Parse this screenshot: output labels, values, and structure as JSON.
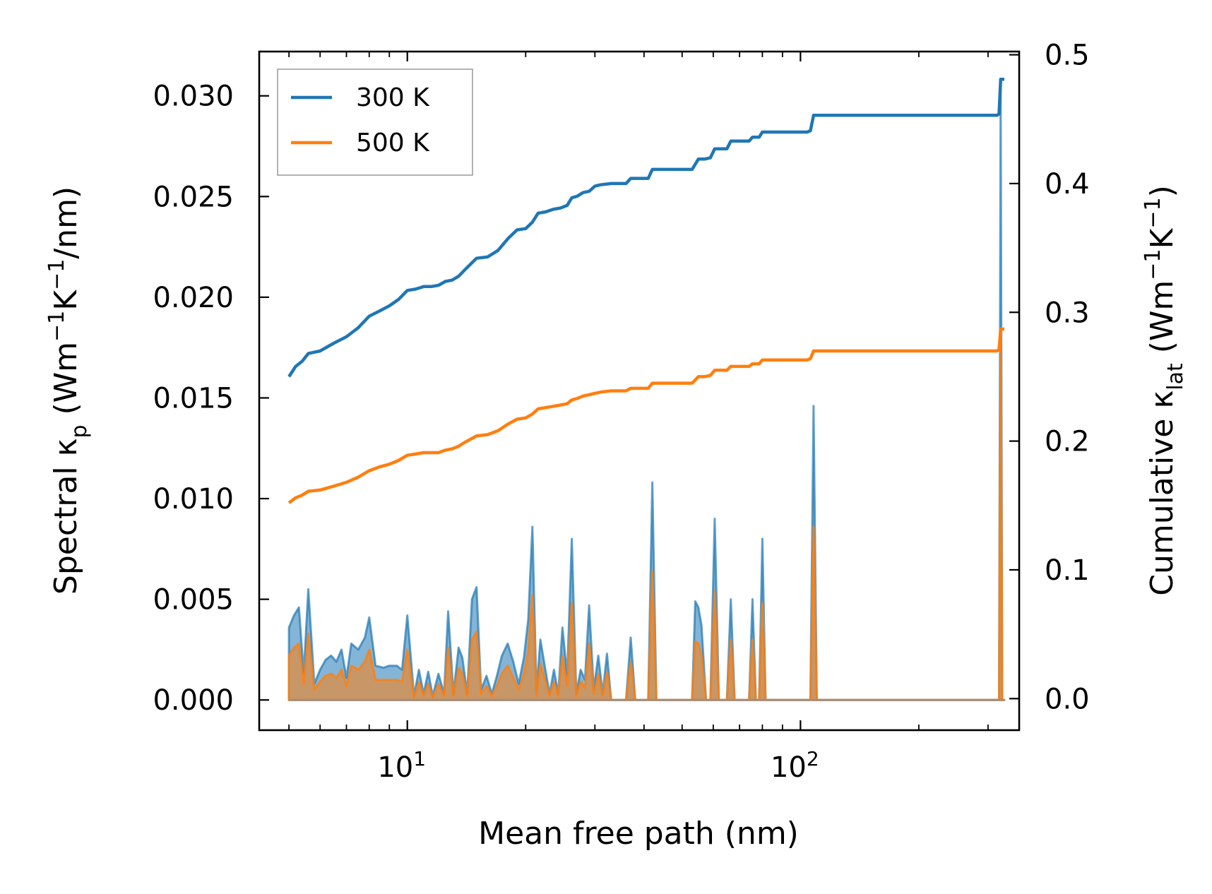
{
  "chart_data": {
    "type": "line",
    "xlabel": "Mean free path (nm)",
    "xscale": "log",
    "xlim": [
      4.2,
      360
    ],
    "x_tick_labels": [
      {
        "base": "10",
        "exp": "1"
      },
      {
        "base": "10",
        "exp": "2"
      }
    ],
    "ylabel_left": {
      "main": "Spectral κ",
      "sub": "p",
      "unit_open": " (Wm",
      "sup1": "−1",
      "mid": "K",
      "sup2": "−1",
      "unit_close": "/nm)"
    },
    "ylabel_right": {
      "main": "Cumulative κ",
      "sub": "lat",
      "unit_open": " (Wm",
      "sup1": "−1",
      "mid": "K",
      "sup2": "−1",
      "unit_close": ")"
    },
    "ylim_left": [
      -0.0015,
      0.0322
    ],
    "ylim_right": [
      -0.0245,
      0.5025
    ],
    "left_ticks": [
      "0.000",
      "0.005",
      "0.010",
      "0.015",
      "0.020",
      "0.025",
      "0.030"
    ],
    "right_ticks": [
      "0.0",
      "0.1",
      "0.2",
      "0.3",
      "0.4",
      "0.5"
    ],
    "legend": {
      "position": "upper left",
      "entries": [
        "300 K",
        "500 K"
      ]
    },
    "colors": {
      "s300": "#1f77b4",
      "s500": "#ff7f0e",
      "fill300": "#6a9fcb",
      "fill500": "#c8976e"
    },
    "spectral_300": [
      [
        5.0,
        0.0036
      ],
      [
        5.15,
        0.0042
      ],
      [
        5.3,
        0.0046
      ],
      [
        5.45,
        0.0013
      ],
      [
        5.6,
        0.0055
      ],
      [
        5.8,
        0.0008
      ],
      [
        6.0,
        0.0015
      ],
      [
        6.2,
        0.002
      ],
      [
        6.4,
        0.0022
      ],
      [
        6.6,
        0.0019
      ],
      [
        6.8,
        0.0025
      ],
      [
        7.0,
        0.0011
      ],
      [
        7.2,
        0.0028
      ],
      [
        7.5,
        0.0025
      ],
      [
        7.8,
        0.0031
      ],
      [
        8.0,
        0.0041
      ],
      [
        8.3,
        0.0017
      ],
      [
        8.7,
        0.0016
      ],
      [
        9.0,
        0.0017
      ],
      [
        9.4,
        0.0017
      ],
      [
        9.7,
        0.0015
      ],
      [
        10.0,
        0.0042
      ],
      [
        10.4,
        0.0002
      ],
      [
        10.7,
        0.0015
      ],
      [
        11.0,
        0.0003
      ],
      [
        11.3,
        0.0014
      ],
      [
        11.6,
        0.0002
      ],
      [
        12.0,
        0.0013
      ],
      [
        12.4,
        0.0003
      ],
      [
        12.7,
        0.0044
      ],
      [
        13.1,
        0.0003
      ],
      [
        13.5,
        0.0026
      ],
      [
        13.8,
        0.0021
      ],
      [
        14.2,
        0.0003
      ],
      [
        14.6,
        0.005
      ],
      [
        15.0,
        0.0056
      ],
      [
        15.4,
        0.0005
      ],
      [
        15.9,
        0.0012
      ],
      [
        16.4,
        0.0003
      ],
      [
        16.9,
        0.0012
      ],
      [
        17.4,
        0.0022
      ],
      [
        18.0,
        0.0028
      ],
      [
        18.6,
        0.0019
      ],
      [
        19.2,
        0.0008
      ],
      [
        19.8,
        0.0021
      ],
      [
        20.3,
        0.004
      ],
      [
        20.8,
        0.0086
      ],
      [
        21.3,
        0.0004
      ],
      [
        21.8,
        0.003
      ],
      [
        22.4,
        0.0016
      ],
      [
        23.0,
        0.0003
      ],
      [
        23.6,
        0.0015
      ],
      [
        24.2,
        0.0003
      ],
      [
        24.8,
        0.0036
      ],
      [
        25.5,
        0.0012
      ],
      [
        26.2,
        0.008
      ],
      [
        26.9,
        0.0003
      ],
      [
        27.6,
        0.0015
      ],
      [
        28.3,
        0.001
      ],
      [
        29.0,
        0.0047
      ],
      [
        29.8,
        0.0005
      ],
      [
        30.6,
        0.0022
      ],
      [
        31.4,
        0.0003
      ],
      [
        32.2,
        0.0023
      ],
      [
        33.0,
        0.0
      ],
      [
        36.0,
        0.0
      ],
      [
        37.0,
        0.0031
      ],
      [
        38.0,
        0.0
      ],
      [
        41.0,
        0.0
      ],
      [
        42.0,
        0.0108
      ],
      [
        43.0,
        0.0
      ],
      [
        53.0,
        0.0
      ],
      [
        54.0,
        0.0049
      ],
      [
        55.0,
        0.0046
      ],
      [
        56.0,
        0.0037
      ],
      [
        57.5,
        0.0
      ],
      [
        59.0,
        0.0
      ],
      [
        60.5,
        0.009
      ],
      [
        62.0,
        0.0
      ],
      [
        65.0,
        0.0
      ],
      [
        66.5,
        0.005
      ],
      [
        68.0,
        0.0
      ],
      [
        74.0,
        0.0
      ],
      [
        75.5,
        0.005
      ],
      [
        77.0,
        0.0
      ],
      [
        78.5,
        0.0
      ],
      [
        80.0,
        0.008
      ],
      [
        81.5,
        0.0
      ],
      [
        104.0,
        0.0
      ],
      [
        106.0,
        0.0
      ],
      [
        108.0,
        0.0146
      ],
      [
        110.0,
        0.0
      ],
      [
        316.0,
        0.0
      ],
      [
        320.0,
        0.0
      ],
      [
        323.0,
        0.0306
      ],
      [
        326.0,
        0.0
      ],
      [
        330.0,
        0.0
      ]
    ],
    "spectral_500": [
      [
        5.0,
        0.0022
      ],
      [
        5.15,
        0.0026
      ],
      [
        5.3,
        0.0028
      ],
      [
        5.45,
        0.0008
      ],
      [
        5.6,
        0.0033
      ],
      [
        5.8,
        0.0005
      ],
      [
        6.0,
        0.0009
      ],
      [
        6.2,
        0.0012
      ],
      [
        6.4,
        0.0013
      ],
      [
        6.6,
        0.0011
      ],
      [
        6.8,
        0.0015
      ],
      [
        7.0,
        0.0007
      ],
      [
        7.2,
        0.0017
      ],
      [
        7.5,
        0.0015
      ],
      [
        7.8,
        0.0019
      ],
      [
        8.0,
        0.0025
      ],
      [
        8.3,
        0.001
      ],
      [
        8.7,
        0.001
      ],
      [
        9.0,
        0.001
      ],
      [
        9.4,
        0.001
      ],
      [
        9.7,
        0.0009
      ],
      [
        10.0,
        0.0025
      ],
      [
        10.4,
        0.0001
      ],
      [
        10.7,
        0.0009
      ],
      [
        11.0,
        0.0002
      ],
      [
        11.3,
        0.0008
      ],
      [
        11.6,
        0.0001
      ],
      [
        12.0,
        0.0008
      ],
      [
        12.4,
        0.0002
      ],
      [
        12.7,
        0.0026
      ],
      [
        13.1,
        0.0002
      ],
      [
        13.5,
        0.0016
      ],
      [
        13.8,
        0.0013
      ],
      [
        14.2,
        0.0002
      ],
      [
        14.6,
        0.003
      ],
      [
        15.0,
        0.0034
      ],
      [
        15.4,
        0.0003
      ],
      [
        15.9,
        0.0007
      ],
      [
        16.4,
        0.0002
      ],
      [
        16.9,
        0.0007
      ],
      [
        17.4,
        0.0013
      ],
      [
        18.0,
        0.0017
      ],
      [
        18.6,
        0.0011
      ],
      [
        19.2,
        0.0005
      ],
      [
        19.8,
        0.0013
      ],
      [
        20.3,
        0.0024
      ],
      [
        20.8,
        0.0052
      ],
      [
        21.3,
        0.0002
      ],
      [
        21.8,
        0.0018
      ],
      [
        22.4,
        0.001
      ],
      [
        23.0,
        0.0002
      ],
      [
        23.6,
        0.0009
      ],
      [
        24.2,
        0.0002
      ],
      [
        24.8,
        0.0022
      ],
      [
        25.5,
        0.0007
      ],
      [
        26.2,
        0.0048
      ],
      [
        26.9,
        0.0002
      ],
      [
        27.6,
        0.0009
      ],
      [
        28.3,
        0.0006
      ],
      [
        29.0,
        0.0028
      ],
      [
        29.8,
        0.0003
      ],
      [
        30.6,
        0.0013
      ],
      [
        31.4,
        0.0002
      ],
      [
        32.2,
        0.0014
      ],
      [
        33.0,
        0.0
      ],
      [
        36.0,
        0.0
      ],
      [
        37.0,
        0.0019
      ],
      [
        38.0,
        0.0
      ],
      [
        41.0,
        0.0
      ],
      [
        42.0,
        0.0064
      ],
      [
        43.0,
        0.0
      ],
      [
        53.0,
        0.0
      ],
      [
        54.0,
        0.0029
      ],
      [
        55.0,
        0.0028
      ],
      [
        56.0,
        0.0022
      ],
      [
        57.5,
        0.0
      ],
      [
        59.0,
        0.0
      ],
      [
        60.5,
        0.0054
      ],
      [
        62.0,
        0.0
      ],
      [
        65.0,
        0.0
      ],
      [
        66.5,
        0.003
      ],
      [
        68.0,
        0.0
      ],
      [
        74.0,
        0.0
      ],
      [
        75.5,
        0.003
      ],
      [
        77.0,
        0.0
      ],
      [
        78.5,
        0.0
      ],
      [
        80.0,
        0.0048
      ],
      [
        81.5,
        0.0
      ],
      [
        104.0,
        0.0
      ],
      [
        106.0,
        0.0
      ],
      [
        108.0,
        0.0086
      ],
      [
        110.0,
        0.0
      ],
      [
        316.0,
        0.0
      ],
      [
        320.0,
        0.0
      ],
      [
        323.0,
        0.0183
      ],
      [
        326.0,
        0.0
      ],
      [
        330.0,
        0.0
      ]
    ],
    "cumulative_300": [
      [
        5.0,
        0.25
      ],
      [
        5.2,
        0.258
      ],
      [
        5.4,
        0.262
      ],
      [
        5.6,
        0.268
      ],
      [
        6.0,
        0.27
      ],
      [
        6.5,
        0.276
      ],
      [
        7.0,
        0.281
      ],
      [
        7.5,
        0.288
      ],
      [
        8.0,
        0.297
      ],
      [
        8.5,
        0.301
      ],
      [
        9.0,
        0.305
      ],
      [
        9.5,
        0.31
      ],
      [
        10.0,
        0.317
      ],
      [
        10.5,
        0.318
      ],
      [
        11.0,
        0.32
      ],
      [
        11.5,
        0.32
      ],
      [
        12.0,
        0.321
      ],
      [
        12.5,
        0.324
      ],
      [
        13.0,
        0.325
      ],
      [
        13.5,
        0.328
      ],
      [
        14.0,
        0.333
      ],
      [
        15.0,
        0.342
      ],
      [
        16.0,
        0.343
      ],
      [
        17.0,
        0.348
      ],
      [
        18.0,
        0.357
      ],
      [
        19.0,
        0.364
      ],
      [
        20.0,
        0.365
      ],
      [
        20.8,
        0.37
      ],
      [
        21.5,
        0.377
      ],
      [
        22.5,
        0.378
      ],
      [
        23.5,
        0.38
      ],
      [
        24.5,
        0.381
      ],
      [
        25.5,
        0.383
      ],
      [
        26.2,
        0.389
      ],
      [
        27.0,
        0.39
      ],
      [
        28.0,
        0.393
      ],
      [
        29.0,
        0.394
      ],
      [
        30.0,
        0.398
      ],
      [
        31.0,
        0.399
      ],
      [
        33.0,
        0.4
      ],
      [
        36.0,
        0.4
      ],
      [
        37.0,
        0.404
      ],
      [
        41.0,
        0.404
      ],
      [
        42.0,
        0.411
      ],
      [
        53.0,
        0.411
      ],
      [
        55.0,
        0.419
      ],
      [
        57.0,
        0.419
      ],
      [
        59.0,
        0.42
      ],
      [
        60.5,
        0.427
      ],
      [
        65.0,
        0.427
      ],
      [
        66.5,
        0.433
      ],
      [
        74.0,
        0.433
      ],
      [
        75.5,
        0.436
      ],
      [
        78.5,
        0.436
      ],
      [
        80.0,
        0.44
      ],
      [
        104.0,
        0.44
      ],
      [
        106.0,
        0.441
      ],
      [
        108.0,
        0.453
      ],
      [
        316.0,
        0.453
      ],
      [
        320.0,
        0.454
      ],
      [
        323.0,
        0.481
      ],
      [
        330.0,
        0.481
      ]
    ],
    "cumulative_500": [
      [
        5.0,
        0.152
      ],
      [
        5.2,
        0.156
      ],
      [
        5.4,
        0.158
      ],
      [
        5.6,
        0.161
      ],
      [
        6.0,
        0.162
      ],
      [
        6.5,
        0.165
      ],
      [
        7.0,
        0.168
      ],
      [
        7.5,
        0.172
      ],
      [
        8.0,
        0.177
      ],
      [
        8.5,
        0.18
      ],
      [
        9.0,
        0.182
      ],
      [
        9.5,
        0.185
      ],
      [
        10.0,
        0.189
      ],
      [
        10.5,
        0.19
      ],
      [
        11.0,
        0.191
      ],
      [
        11.5,
        0.191
      ],
      [
        12.0,
        0.191
      ],
      [
        12.5,
        0.193
      ],
      [
        13.0,
        0.194
      ],
      [
        13.5,
        0.196
      ],
      [
        14.0,
        0.199
      ],
      [
        15.0,
        0.204
      ],
      [
        16.0,
        0.205
      ],
      [
        17.0,
        0.208
      ],
      [
        18.0,
        0.213
      ],
      [
        19.0,
        0.217
      ],
      [
        20.0,
        0.218
      ],
      [
        20.8,
        0.221
      ],
      [
        21.5,
        0.225
      ],
      [
        22.5,
        0.226
      ],
      [
        23.5,
        0.227
      ],
      [
        24.5,
        0.228
      ],
      [
        25.5,
        0.229
      ],
      [
        26.2,
        0.232
      ],
      [
        27.0,
        0.233
      ],
      [
        28.0,
        0.235
      ],
      [
        29.0,
        0.236
      ],
      [
        30.0,
        0.237
      ],
      [
        31.0,
        0.238
      ],
      [
        33.0,
        0.239
      ],
      [
        36.0,
        0.239
      ],
      [
        37.0,
        0.241
      ],
      [
        41.0,
        0.241
      ],
      [
        42.0,
        0.245
      ],
      [
        53.0,
        0.245
      ],
      [
        55.0,
        0.25
      ],
      [
        57.0,
        0.25
      ],
      [
        59.0,
        0.251
      ],
      [
        60.5,
        0.255
      ],
      [
        65.0,
        0.255
      ],
      [
        66.5,
        0.258
      ],
      [
        74.0,
        0.258
      ],
      [
        75.5,
        0.26
      ],
      [
        78.5,
        0.26
      ],
      [
        80.0,
        0.263
      ],
      [
        104.0,
        0.263
      ],
      [
        106.0,
        0.264
      ],
      [
        108.0,
        0.27
      ],
      [
        316.0,
        0.27
      ],
      [
        320.0,
        0.271
      ],
      [
        323.0,
        0.287
      ],
      [
        330.0,
        0.287
      ]
    ]
  }
}
